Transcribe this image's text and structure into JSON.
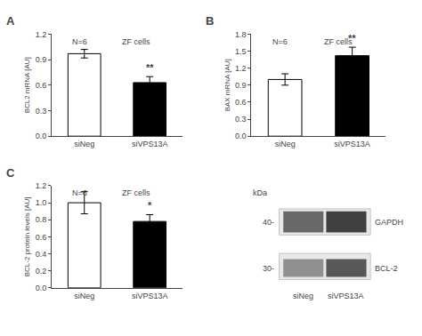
{
  "chart_data": [
    {
      "type": "bar",
      "title": "A",
      "categories": [
        "siNeg",
        "siVPS13A"
      ],
      "values": [
        0.97,
        0.63
      ],
      "errors": [
        0.05,
        0.07
      ],
      "colors": [
        "white",
        "black"
      ],
      "edgecolor": "black",
      "ylabel": "BCL2 mRNA [AU]",
      "ylim": [
        0,
        1.2
      ],
      "yticks": [
        {
          "value": 0,
          "label": "0.0"
        },
        0.3,
        0.6,
        0.9,
        1.2
      ],
      "grid": false,
      "annotations": [
        {
          "text": "N=6"
        },
        {
          "text": "ZF cells"
        },
        {
          "text": "**",
          "category": "siVPS13A"
        }
      ]
    },
    {
      "type": "bar",
      "title": "B",
      "categories": [
        "siNeg",
        "siVPS13A"
      ],
      "values": [
        1.0,
        1.42
      ],
      "errors": [
        0.1,
        0.15
      ],
      "colors": [
        "white",
        "black"
      ],
      "edgecolor": "black",
      "ylabel": "BAX mRNA [AU]",
      "ylim": [
        0,
        1.8
      ],
      "yticks": [
        {
          "value": 0,
          "label": "0.0"
        },
        0.3,
        0.6,
        0.9,
        1.2,
        1.5,
        1.8
      ],
      "grid": false,
      "annotations": [
        {
          "text": "N=6"
        },
        {
          "text": "ZF cells"
        },
        {
          "text": "**",
          "category": "siVPS13A"
        }
      ]
    },
    {
      "type": "bar",
      "title": "C",
      "categories": [
        "siNeg",
        "siVPS13A"
      ],
      "values": [
        1.0,
        0.78
      ],
      "errors": [
        0.13,
        0.08
      ],
      "colors": [
        "white",
        "black"
      ],
      "edgecolor": "black",
      "ylabel": "BCL-2 protein levels [AU]",
      "ylim": [
        0,
        1.2
      ],
      "yticks": [
        {
          "value": 0,
          "label": "0.0"
        },
        0.2,
        0.4,
        0.6,
        0.8,
        {
          "value": 1.0,
          "label": "1.0"
        },
        1.2
      ],
      "grid": false,
      "annotations": [
        {
          "text": "N=6"
        },
        {
          "text": "ZF cells"
        },
        {
          "text": "*",
          "category": "siVPS13A"
        }
      ]
    },
    {
      "type": "blot",
      "ylabel": "kDa",
      "categories": [
        "siNeg",
        "siVPS13A"
      ],
      "color": "#e8e8e8",
      "edgecolor": "#999999",
      "series": [
        {
          "name": "GAPDH",
          "label": "40-",
          "colors": [
            "#686868",
            "#404040"
          ]
        },
        {
          "name": "BCL-2",
          "label": "30-",
          "colors": [
            "#909090",
            "#585858"
          ]
        }
      ]
    }
  ]
}
